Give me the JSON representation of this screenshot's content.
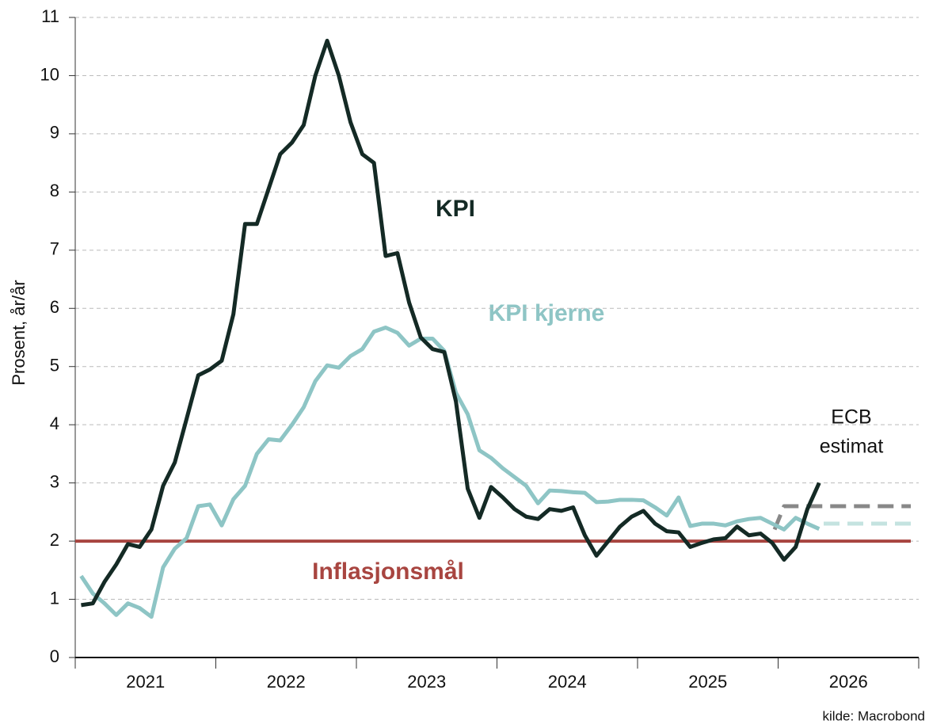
{
  "chart_data": {
    "type": "line",
    "y_label": "Prosent, år/år",
    "source": "kilde: Macrobond",
    "ylim": [
      0,
      11
    ],
    "yticks": [
      0,
      1,
      2,
      3,
      4,
      5,
      6,
      7,
      8,
      9,
      10,
      11
    ],
    "xlim": [
      2021,
      2027
    ],
    "xticks": [
      2021,
      2022,
      2023,
      2024,
      2025,
      2026,
      2027
    ],
    "year_labels": [
      2021,
      2022,
      2023,
      2024,
      2025,
      2026
    ],
    "grid": true,
    "x": [
      2021.042,
      2021.125,
      2021.208,
      2021.292,
      2021.375,
      2021.458,
      2021.542,
      2021.625,
      2021.708,
      2021.792,
      2021.875,
      2021.958,
      2022.042,
      2022.125,
      2022.208,
      2022.292,
      2022.375,
      2022.458,
      2022.542,
      2022.625,
      2022.708,
      2022.792,
      2022.875,
      2022.958,
      2023.042,
      2023.125,
      2023.208,
      2023.292,
      2023.375,
      2023.458,
      2023.542,
      2023.625,
      2023.708,
      2023.792,
      2023.875,
      2023.958,
      2024.042,
      2024.125,
      2024.208,
      2024.292,
      2024.375,
      2024.458,
      2024.542,
      2024.625,
      2024.708,
      2024.792,
      2024.875,
      2024.958,
      2025.042,
      2025.125,
      2025.208,
      2025.292,
      2025.375,
      2025.458,
      2025.542,
      2025.625,
      2025.708,
      2025.792,
      2025.875,
      2025.958,
      2026.042,
      2026.125,
      2026.208,
      2026.292
    ],
    "series": [
      {
        "name": "KPI",
        "color": "#142a25",
        "values": [
          0.9,
          0.93,
          1.3,
          1.6,
          1.95,
          1.9,
          2.2,
          2.95,
          3.35,
          4.1,
          4.85,
          4.95,
          5.1,
          5.9,
          7.45,
          7.45,
          8.05,
          8.65,
          8.85,
          9.15,
          10.0,
          10.6,
          10.0,
          9.2,
          8.65,
          8.5,
          6.9,
          6.95,
          6.1,
          5.5,
          5.3,
          5.25,
          4.4,
          2.9,
          2.4,
          2.93,
          2.75,
          2.55,
          2.42,
          2.38,
          2.55,
          2.52,
          2.58,
          2.1,
          1.75,
          2.0,
          2.25,
          2.42,
          2.52,
          2.3,
          2.17,
          2.15,
          1.9,
          1.97,
          2.03,
          2.05,
          2.25,
          2.1,
          2.13,
          1.97,
          1.68,
          1.9,
          2.55,
          3.0
        ]
      },
      {
        "name": "KPI kjerne",
        "color": "#8ec5c5",
        "values": [
          1.4,
          1.1,
          0.93,
          0.73,
          0.93,
          0.85,
          0.7,
          1.55,
          1.87,
          2.05,
          2.6,
          2.63,
          2.27,
          2.72,
          2.95,
          3.5,
          3.75,
          3.73,
          4.0,
          4.3,
          4.75,
          5.02,
          4.98,
          5.18,
          5.3,
          5.6,
          5.67,
          5.58,
          5.36,
          5.48,
          5.48,
          5.27,
          4.55,
          4.18,
          3.56,
          3.43,
          3.25,
          3.1,
          2.95,
          2.65,
          2.87,
          2.86,
          2.84,
          2.83,
          2.67,
          2.68,
          2.71,
          2.71,
          2.7,
          2.58,
          2.44,
          2.75,
          2.26,
          2.3,
          2.3,
          2.27,
          2.34,
          2.38,
          2.4,
          2.3,
          2.2,
          2.4,
          2.3,
          2.21
        ]
      }
    ],
    "estimate_label": [
      "ECB",
      "estimat"
    ],
    "estimates": [
      {
        "color": "#888888",
        "x": [
          2025.975,
          2026.042,
          2026.944
        ],
        "values": [
          2.2,
          2.6,
          2.6
        ]
      },
      {
        "color": "#c4e3e0",
        "x": [
          2026.324,
          2026.944
        ],
        "values": [
          2.3,
          2.3
        ]
      }
    ],
    "target": {
      "label": "Inflasjonsmål",
      "value": 2,
      "color": "#a84540"
    }
  }
}
